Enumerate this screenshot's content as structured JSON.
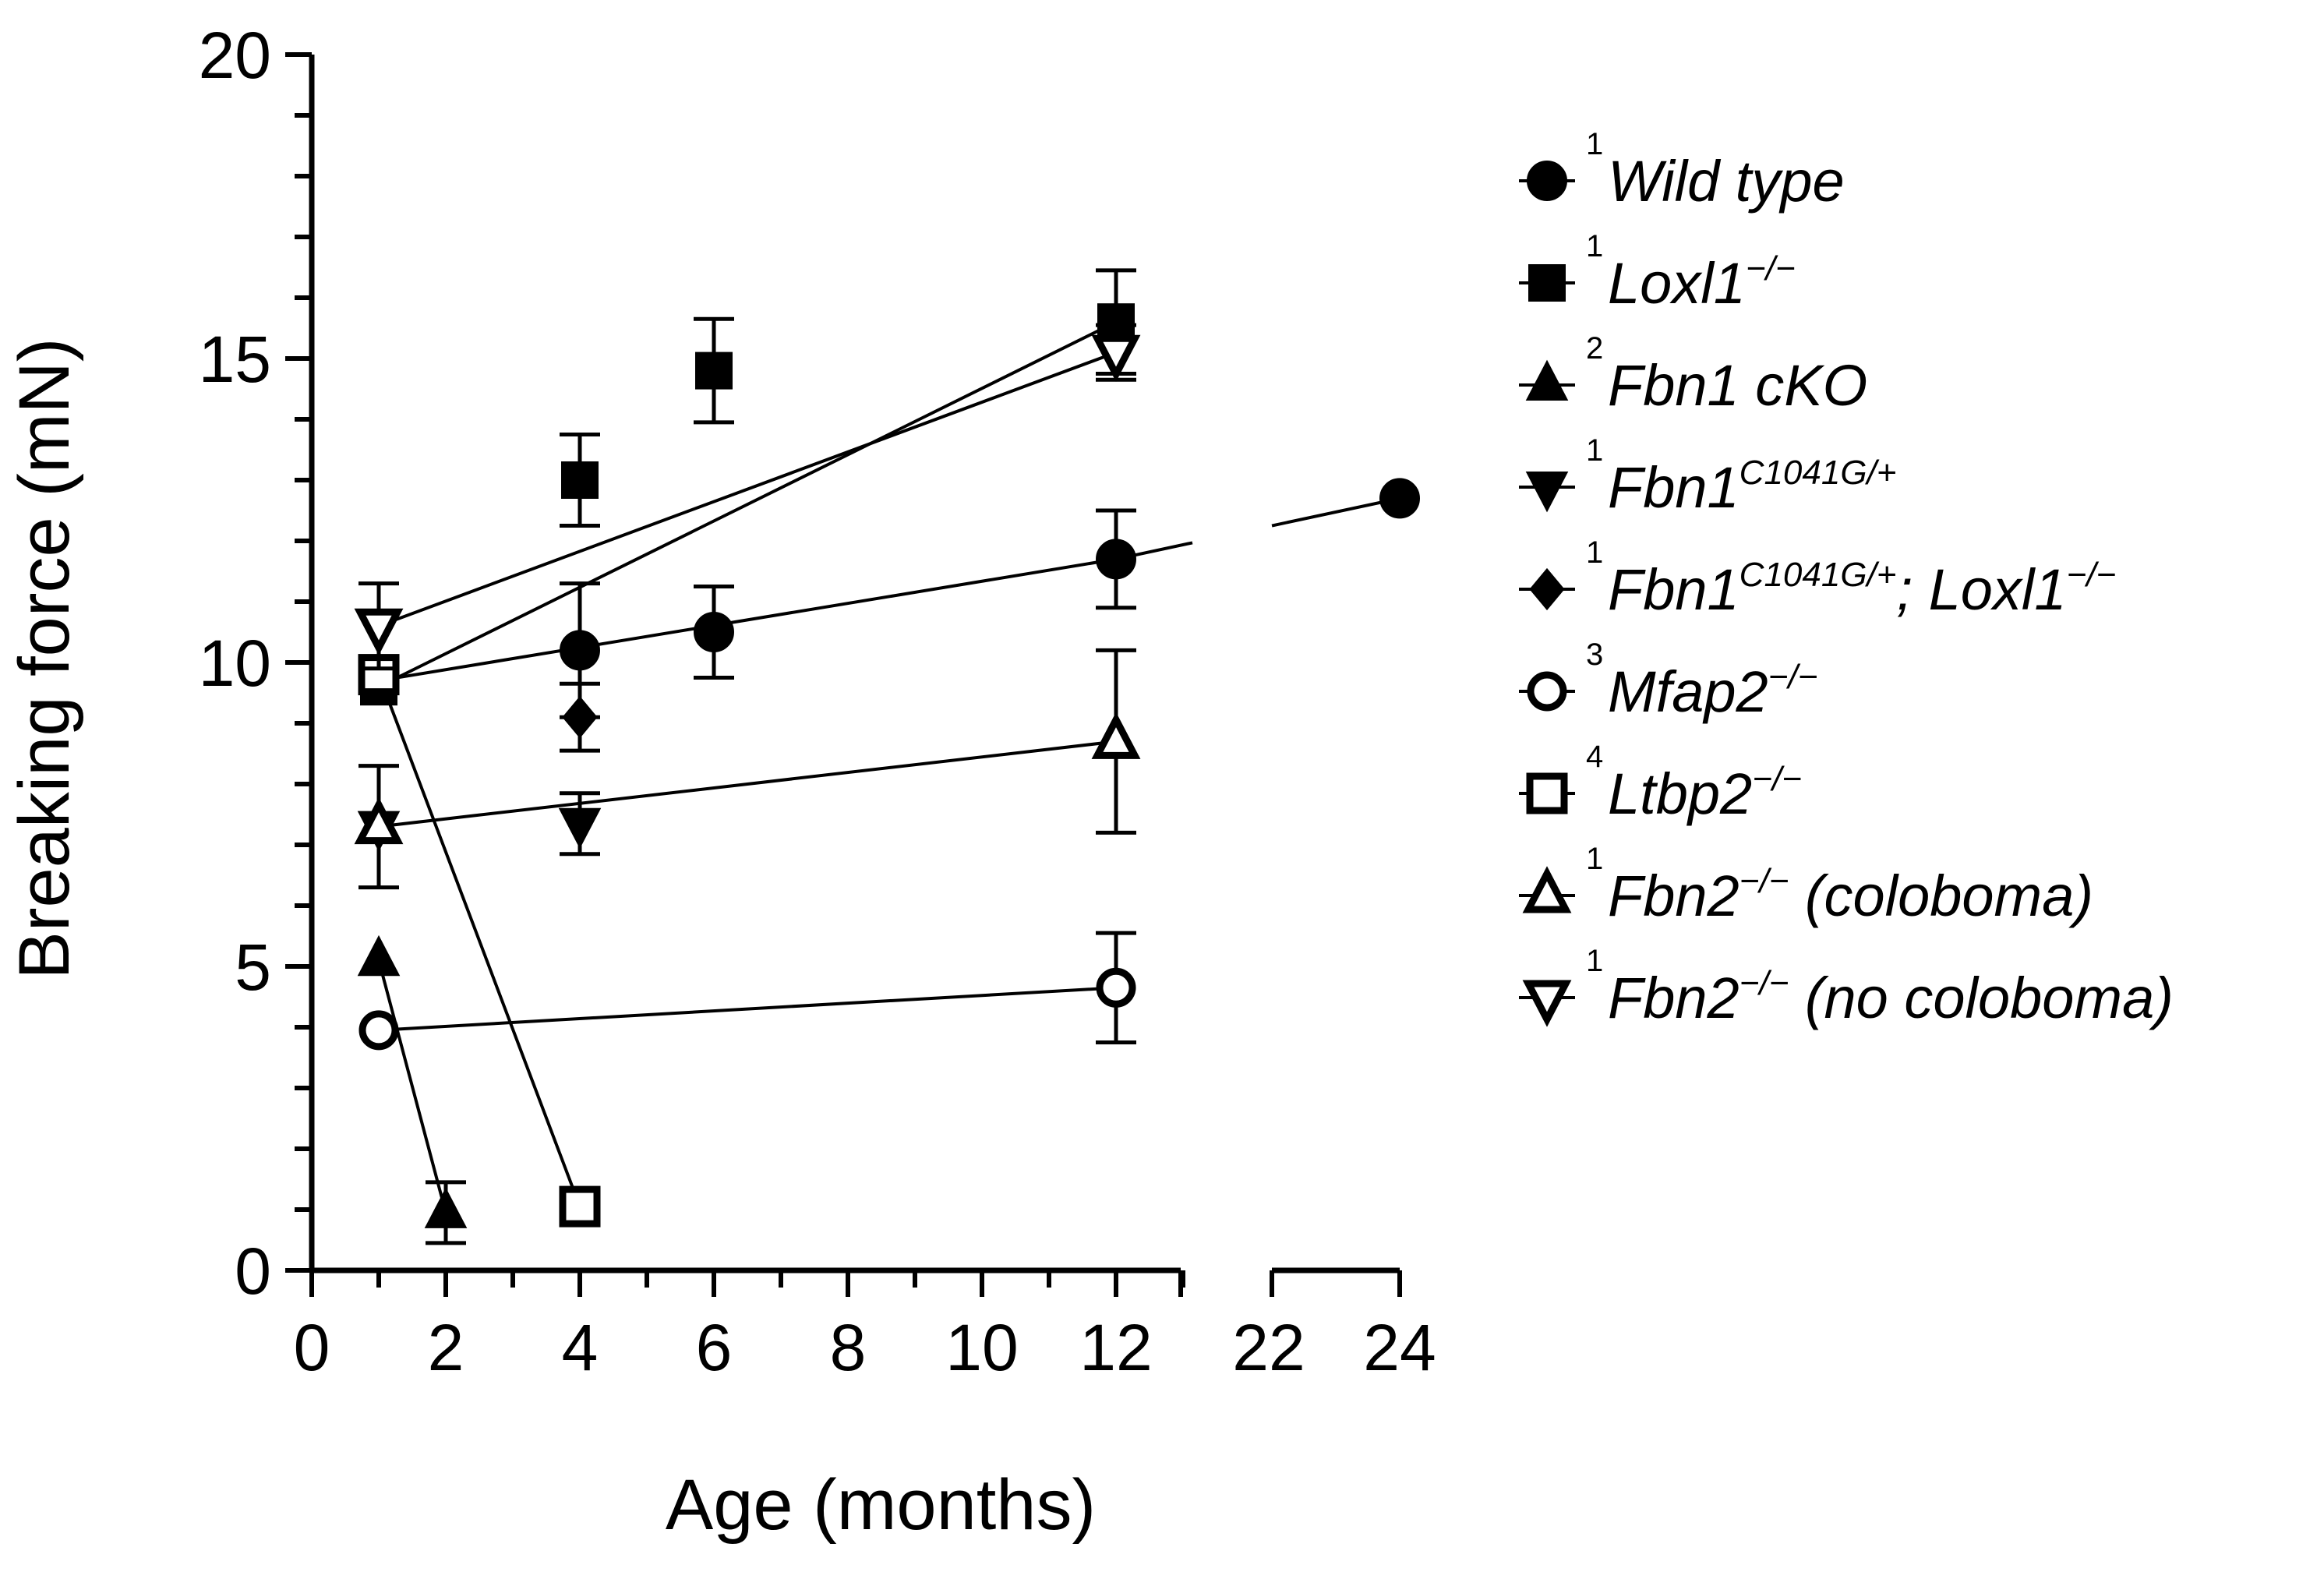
{
  "chart_data": {
    "type": "line",
    "title": "",
    "xlabel": "Age (months)",
    "ylabel": "Breaking force (mN)",
    "ylim": [
      0,
      20
    ],
    "yticks": [
      "0",
      "5",
      "10",
      "15",
      "20"
    ],
    "xticks": [
      "0",
      "2",
      "4",
      "6",
      "8",
      "10",
      "12",
      "22",
      "24"
    ],
    "x_axis_break": [
      13,
      22
    ],
    "grid": false,
    "legend_position": "right",
    "series": [
      {
        "key": "wt",
        "ref": "1",
        "name": "Wild type",
        "sup": "",
        "suffix": "",
        "marker": "circle",
        "filled": true,
        "points": [
          {
            "x": 1,
            "y": 9.7
          },
          {
            "x": 4,
            "y": 10.2,
            "err": 1.1
          },
          {
            "x": 6,
            "y": 10.5,
            "err": 0.75
          },
          {
            "x": 12,
            "y": 11.7,
            "err": 0.8
          },
          {
            "x": 24,
            "y": 12.7
          }
        ],
        "segments": [
          [
            0,
            3
          ],
          [
            3,
            4
          ]
        ]
      },
      {
        "key": "loxl1",
        "ref": "1",
        "name": "Loxl1",
        "sup": "−/−",
        "suffix": "",
        "marker": "square",
        "filled": true,
        "points": [
          {
            "x": 1,
            "y": 9.6
          },
          {
            "x": 4,
            "y": 13.0,
            "err": 0.75
          },
          {
            "x": 6,
            "y": 14.8,
            "err": 0.85
          },
          {
            "x": 12,
            "y": 15.6,
            "err": 0.85
          }
        ],
        "segments": [
          [
            0,
            3
          ]
        ]
      },
      {
        "key": "fbn1cko",
        "ref": "2",
        "name": "Fbn1 cKO",
        "sup": "",
        "suffix": "",
        "marker": "triangle-up",
        "filled": true,
        "points": [
          {
            "x": 1,
            "y": 5.1
          },
          {
            "x": 2,
            "y": 0.95,
            "err": 0.5
          }
        ],
        "segments": [
          [
            0,
            1
          ]
        ]
      },
      {
        "key": "fbn1c1041g",
        "ref": "1",
        "name": "Fbn1",
        "sup": "C1041G/+",
        "suffix": "",
        "marker": "triangle-down",
        "filled": true,
        "points": [
          {
            "x": 1,
            "y": 7.3
          },
          {
            "x": 4,
            "y": 7.35,
            "err": 0.5
          }
        ],
        "segments": []
      },
      {
        "key": "fbn1loxl1",
        "ref": "1",
        "name": "Fbn1",
        "sup": "C1041G/+",
        "suffix": "; Loxl1",
        "suffix_sup": "−/−",
        "marker": "diamond",
        "filled": true,
        "points": [
          {
            "x": 4,
            "y": 9.1,
            "err": 0.55
          }
        ],
        "segments": []
      },
      {
        "key": "mfap2",
        "ref": "3",
        "name": "Mfap2",
        "sup": "−/−",
        "suffix": "",
        "marker": "circle",
        "filled": false,
        "points": [
          {
            "x": 1,
            "y": 3.95
          },
          {
            "x": 12,
            "y": 4.65,
            "err": 0.9
          }
        ],
        "segments": [
          [
            0,
            1
          ]
        ]
      },
      {
        "key": "ltbp2",
        "ref": "4",
        "name": "Ltbp2",
        "sup": "−/−",
        "suffix": "",
        "marker": "square",
        "filled": false,
        "points": [
          {
            "x": 1,
            "y": 9.8
          },
          {
            "x": 4,
            "y": 1.05
          }
        ],
        "segments": [
          [
            0,
            1
          ]
        ]
      },
      {
        "key": "fbn2colo",
        "ref": "1",
        "name": "Fbn2",
        "sup": "−/−",
        "suffix": " (coloboma)",
        "marker": "triangle-up",
        "filled": false,
        "points": [
          {
            "x": 1,
            "y": 7.3,
            "err": 1.0
          },
          {
            "x": 12,
            "y": 8.7,
            "err": 1.5
          }
        ],
        "segments": [
          [
            0,
            1
          ]
        ]
      },
      {
        "key": "fbn2nocolo",
        "ref": "1",
        "name": "Fbn2",
        "sup": "−/−",
        "suffix": " (no coloboma)",
        "marker": "triangle-down",
        "filled": false,
        "points": [
          {
            "x": 1,
            "y": 10.6,
            "err": 0.7
          },
          {
            "x": 12,
            "y": 15.1,
            "err": 0.45
          }
        ],
        "segments": [
          [
            0,
            1
          ]
        ]
      }
    ]
  }
}
